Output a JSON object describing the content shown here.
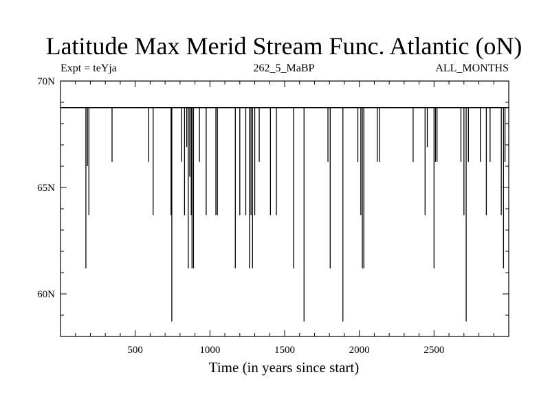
{
  "chart_data": {
    "type": "line",
    "title": "Latitude Max Merid Stream Func. Atlantic (oN)",
    "subtitle_left": "Expt = teYja",
    "subtitle_center": "262_5_MaBP",
    "subtitle_right": "ALL_MONTHS",
    "xlabel": "Time (in years since start)",
    "ylabel": "",
    "xlim": [
      0,
      3000
    ],
    "ylim": [
      58,
      70
    ],
    "x_ticks": [
      500,
      1000,
      1500,
      2000,
      2500
    ],
    "y_ticks": [
      {
        "value": 60,
        "label": "60N"
      },
      {
        "value": 65,
        "label": "65N"
      },
      {
        "value": 70,
        "label": "70N"
      }
    ],
    "baseline": 68.75,
    "drops": [
      {
        "x": 170,
        "y": 61.2
      },
      {
        "x": 180,
        "y": 66.0
      },
      {
        "x": 190,
        "y": 63.7
      },
      {
        "x": 345,
        "y": 66.2
      },
      {
        "x": 590,
        "y": 66.2
      },
      {
        "x": 620,
        "y": 63.7
      },
      {
        "x": 740,
        "y": 63.7
      },
      {
        "x": 745,
        "y": 58.7
      },
      {
        "x": 810,
        "y": 66.2
      },
      {
        "x": 830,
        "y": 63.7
      },
      {
        "x": 845,
        "y": 66.9
      },
      {
        "x": 855,
        "y": 61.2
      },
      {
        "x": 865,
        "y": 65.5
      },
      {
        "x": 875,
        "y": 63.7
      },
      {
        "x": 880,
        "y": 61.2
      },
      {
        "x": 890,
        "y": 61.2
      },
      {
        "x": 930,
        "y": 66.2
      },
      {
        "x": 975,
        "y": 63.7
      },
      {
        "x": 1040,
        "y": 63.7
      },
      {
        "x": 1050,
        "y": 63.7
      },
      {
        "x": 1170,
        "y": 61.2
      },
      {
        "x": 1200,
        "y": 63.7
      },
      {
        "x": 1240,
        "y": 63.7
      },
      {
        "x": 1265,
        "y": 61.2
      },
      {
        "x": 1275,
        "y": 63.7
      },
      {
        "x": 1285,
        "y": 61.2
      },
      {
        "x": 1300,
        "y": 63.7
      },
      {
        "x": 1330,
        "y": 66.2
      },
      {
        "x": 1405,
        "y": 63.7
      },
      {
        "x": 1445,
        "y": 63.7
      },
      {
        "x": 1560,
        "y": 61.2
      },
      {
        "x": 1630,
        "y": 58.7
      },
      {
        "x": 1790,
        "y": 66.2
      },
      {
        "x": 1805,
        "y": 61.2
      },
      {
        "x": 1890,
        "y": 58.7
      },
      {
        "x": 1990,
        "y": 66.2
      },
      {
        "x": 2010,
        "y": 63.7
      },
      {
        "x": 2020,
        "y": 61.2
      },
      {
        "x": 2030,
        "y": 61.2
      },
      {
        "x": 2120,
        "y": 66.2
      },
      {
        "x": 2135,
        "y": 66.2
      },
      {
        "x": 2360,
        "y": 66.2
      },
      {
        "x": 2440,
        "y": 63.7
      },
      {
        "x": 2455,
        "y": 66.9
      },
      {
        "x": 2500,
        "y": 61.2
      },
      {
        "x": 2510,
        "y": 66.2
      },
      {
        "x": 2520,
        "y": 66.2
      },
      {
        "x": 2680,
        "y": 66.2
      },
      {
        "x": 2700,
        "y": 63.7
      },
      {
        "x": 2715,
        "y": 58.7
      },
      {
        "x": 2730,
        "y": 66.2
      },
      {
        "x": 2810,
        "y": 66.2
      },
      {
        "x": 2850,
        "y": 63.7
      },
      {
        "x": 2875,
        "y": 66.2
      },
      {
        "x": 2950,
        "y": 63.7
      },
      {
        "x": 2965,
        "y": 61.2
      },
      {
        "x": 2975,
        "y": 66.2
      }
    ],
    "grid": false,
    "legend": "none"
  }
}
